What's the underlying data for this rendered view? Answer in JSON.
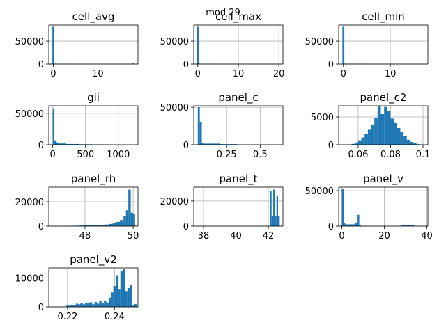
{
  "figure_title": "mod 29",
  "bar_color": "#1f77b4",
  "chart_data": [
    {
      "type": "bar",
      "title": "cell_avg",
      "xlim": [
        -1,
        19
      ],
      "ylim": [
        0,
        85000
      ],
      "xticks": [
        0,
        10
      ],
      "yticks": [
        0,
        50000
      ],
      "ytick_labels": [
        "0",
        "50000"
      ],
      "grid": true,
      "bins": [
        [
          -0.2,
          0.2,
          81000
        ],
        [
          0.2,
          0.6,
          900
        ],
        [
          0.6,
          5,
          500
        ],
        [
          5,
          10,
          400
        ],
        [
          10,
          15.3,
          300
        ],
        [
          15.3,
          17.8,
          100
        ],
        [
          17.8,
          18.2,
          1400
        ]
      ]
    },
    {
      "type": "bar",
      "title": "cell_max",
      "xlim": [
        -1,
        21
      ],
      "ylim": [
        0,
        85000
      ],
      "xticks": [
        0,
        10,
        20
      ],
      "yticks": [
        0,
        50000
      ],
      "ytick_labels": [
        "0",
        "50000"
      ],
      "grid": true,
      "bins": [
        [
          -0.2,
          0.2,
          81000
        ],
        [
          0.2,
          0.6,
          900
        ],
        [
          0.6,
          5,
          500
        ],
        [
          5,
          10,
          400
        ],
        [
          10,
          15,
          300
        ],
        [
          15,
          18.6,
          200
        ],
        [
          18.6,
          19.5,
          100
        ]
      ]
    },
    {
      "type": "bar",
      "title": "cell_min",
      "xlim": [
        -1,
        18
      ],
      "ylim": [
        0,
        85000
      ],
      "xticks": [
        0,
        10
      ],
      "yticks": [
        0,
        50000
      ],
      "ytick_labels": [
        "0",
        "50000"
      ],
      "grid": true,
      "bins": [
        [
          -0.2,
          0.2,
          81000
        ],
        [
          0.2,
          0.6,
          900
        ],
        [
          0.6,
          5,
          500
        ],
        [
          5,
          10,
          400
        ],
        [
          10,
          14,
          300
        ]
      ]
    },
    {
      "type": "bar",
      "title": "gii",
      "xlim": [
        -60,
        1300
      ],
      "ylim": [
        0,
        62000
      ],
      "xticks": [
        0,
        500,
        1000
      ],
      "yticks": [
        0,
        50000
      ],
      "ytick_labels": [
        "0",
        "50000"
      ],
      "grid": true,
      "bins": [
        [
          0,
          25,
          58000
        ],
        [
          25,
          50,
          7000
        ],
        [
          50,
          75,
          4000
        ],
        [
          75,
          100,
          3000
        ],
        [
          100,
          200,
          2000
        ],
        [
          200,
          400,
          1200
        ],
        [
          400,
          600,
          800
        ],
        [
          600,
          860,
          600
        ]
      ]
    },
    {
      "type": "bar",
      "title": "panel_c",
      "xlim": [
        0.005,
        0.67
      ],
      "ylim": [
        0,
        52000
      ],
      "xticks": [
        0.25,
        0.5
      ],
      "yticks": [
        0,
        50000
      ],
      "ytick_labels": [
        "0",
        "50000"
      ],
      "grid": true,
      "bins": [
        [
          0.035,
          0.05,
          50000
        ],
        [
          0.05,
          0.065,
          30000
        ],
        [
          0.065,
          0.08,
          2500
        ],
        [
          0.08,
          0.2,
          1500
        ],
        [
          0.2,
          0.33,
          800
        ],
        [
          0.33,
          0.63,
          300
        ]
      ]
    },
    {
      "type": "bar",
      "title": "panel_c2",
      "xlim": [
        0.048,
        0.103
      ],
      "ylim": [
        0,
        7000
      ],
      "xticks": [
        0.06,
        0.08,
        0.1
      ],
      "yticks": [
        0,
        5000
      ],
      "ytick_labels": [
        "0",
        "5000"
      ],
      "grid": true,
      "bins": [
        [
          0.052,
          0.054,
          30
        ],
        [
          0.054,
          0.056,
          60
        ],
        [
          0.056,
          0.058,
          150
        ],
        [
          0.058,
          0.06,
          400
        ],
        [
          0.06,
          0.062,
          800
        ],
        [
          0.062,
          0.064,
          1300
        ],
        [
          0.064,
          0.066,
          1900
        ],
        [
          0.066,
          0.068,
          2700
        ],
        [
          0.068,
          0.07,
          3600
        ],
        [
          0.07,
          0.072,
          4800
        ],
        [
          0.072,
          0.074,
          7000
        ],
        [
          0.074,
          0.076,
          5500
        ],
        [
          0.076,
          0.078,
          6800
        ],
        [
          0.078,
          0.08,
          6000
        ],
        [
          0.08,
          0.082,
          4700
        ],
        [
          0.082,
          0.084,
          3900
        ],
        [
          0.084,
          0.086,
          3000
        ],
        [
          0.086,
          0.088,
          2300
        ],
        [
          0.088,
          0.09,
          1500
        ],
        [
          0.09,
          0.092,
          900
        ],
        [
          0.092,
          0.094,
          500
        ],
        [
          0.094,
          0.096,
          250
        ],
        [
          0.096,
          0.098,
          100
        ],
        [
          0.098,
          0.1,
          40
        ]
      ]
    },
    {
      "type": "bar",
      "title": "panel_rh",
      "xlim": [
        46.5,
        50.2
      ],
      "ylim": [
        0,
        32000
      ],
      "xticks": [
        48,
        50
      ],
      "yticks": [
        0,
        20000
      ],
      "ytick_labels": [
        "0",
        "20000"
      ],
      "grid": true,
      "bins": [
        [
          47.2,
          47.4,
          200
        ],
        [
          47.4,
          47.6,
          300
        ],
        [
          47.6,
          47.8,
          400
        ],
        [
          47.8,
          48.0,
          500
        ],
        [
          48.0,
          48.2,
          600
        ],
        [
          48.2,
          48.4,
          700
        ],
        [
          48.4,
          48.6,
          900
        ],
        [
          48.6,
          48.8,
          1000
        ],
        [
          48.8,
          49.0,
          1300
        ],
        [
          49.0,
          49.15,
          1800
        ],
        [
          49.15,
          49.3,
          2500
        ],
        [
          49.3,
          49.45,
          3500
        ],
        [
          49.45,
          49.6,
          5000
        ],
        [
          49.6,
          49.7,
          8000
        ],
        [
          49.7,
          49.8,
          13000
        ],
        [
          49.8,
          49.9,
          30000
        ],
        [
          49.9,
          50.0,
          11000
        ],
        [
          50.0,
          50.08,
          10000
        ]
      ]
    },
    {
      "type": "bar",
      "title": "panel_t",
      "xlim": [
        37.4,
        42.9
      ],
      "ylim": [
        0,
        31000
      ],
      "xticks": [
        38,
        40,
        42
      ],
      "yticks": [
        0,
        20000
      ],
      "ytick_labels": [
        "0",
        "20000"
      ],
      "grid": true,
      "bins": [
        [
          42.1,
          42.2,
          28000
        ],
        [
          42.2,
          42.3,
          8000
        ],
        [
          42.3,
          42.4,
          29000
        ],
        [
          42.4,
          42.5,
          8000
        ],
        [
          42.5,
          42.6,
          24000
        ],
        [
          42.6,
          42.7,
          8000
        ]
      ]
    },
    {
      "type": "bar",
      "title": "panel_v",
      "xlim": [
        -1.5,
        40.5
      ],
      "ylim": [
        0,
        55000
      ],
      "xticks": [
        0,
        20,
        40
      ],
      "yticks": [
        0,
        50000
      ],
      "ytick_labels": [
        "0",
        "50000"
      ],
      "grid": true,
      "bins": [
        [
          0,
          0.8,
          52000
        ],
        [
          0.8,
          1.6,
          4500
        ],
        [
          1.6,
          6,
          2500
        ],
        [
          6,
          7.4,
          4000
        ],
        [
          7.4,
          8.2,
          16000
        ],
        [
          8.2,
          9,
          1000
        ],
        [
          28,
          34,
          2000
        ]
      ]
    },
    {
      "type": "bar",
      "title": "panel_v2",
      "xlim": [
        0.212,
        0.25
      ],
      "ylim": [
        0,
        13500
      ],
      "xticks": [
        0.22,
        0.24
      ],
      "yticks": [
        0,
        10000
      ],
      "ytick_labels": [
        "0",
        "10000"
      ],
      "grid": true,
      "bins": [
        [
          0.2195,
          0.2205,
          500
        ],
        [
          0.2205,
          0.2215,
          400
        ],
        [
          0.2215,
          0.2225,
          700
        ],
        [
          0.2225,
          0.2235,
          500
        ],
        [
          0.2235,
          0.2245,
          1100
        ],
        [
          0.2245,
          0.2255,
          900
        ],
        [
          0.2255,
          0.2265,
          1300
        ],
        [
          0.2265,
          0.2275,
          900
        ],
        [
          0.2275,
          0.2285,
          1500
        ],
        [
          0.2285,
          0.2295,
          1200
        ],
        [
          0.2295,
          0.2305,
          1600
        ],
        [
          0.2305,
          0.2315,
          900
        ],
        [
          0.2315,
          0.2325,
          1700
        ],
        [
          0.2325,
          0.2335,
          1100
        ],
        [
          0.2335,
          0.2345,
          2000
        ],
        [
          0.2345,
          0.2355,
          1400
        ],
        [
          0.2355,
          0.2365,
          2200
        ],
        [
          0.2365,
          0.2375,
          1500
        ],
        [
          0.2375,
          0.2385,
          3200
        ],
        [
          0.2385,
          0.2395,
          5000
        ],
        [
          0.2395,
          0.2405,
          7200
        ],
        [
          0.2405,
          0.2415,
          11000
        ],
        [
          0.2415,
          0.2425,
          6000
        ],
        [
          0.2425,
          0.2435,
          12500
        ],
        [
          0.2435,
          0.2445,
          13000
        ],
        [
          0.2445,
          0.2455,
          5500
        ],
        [
          0.2455,
          0.2465,
          6500
        ],
        [
          0.2465,
          0.2475,
          7500
        ],
        [
          0.2475,
          0.2485,
          400
        ],
        [
          0.2485,
          0.2495,
          1000
        ]
      ]
    }
  ]
}
